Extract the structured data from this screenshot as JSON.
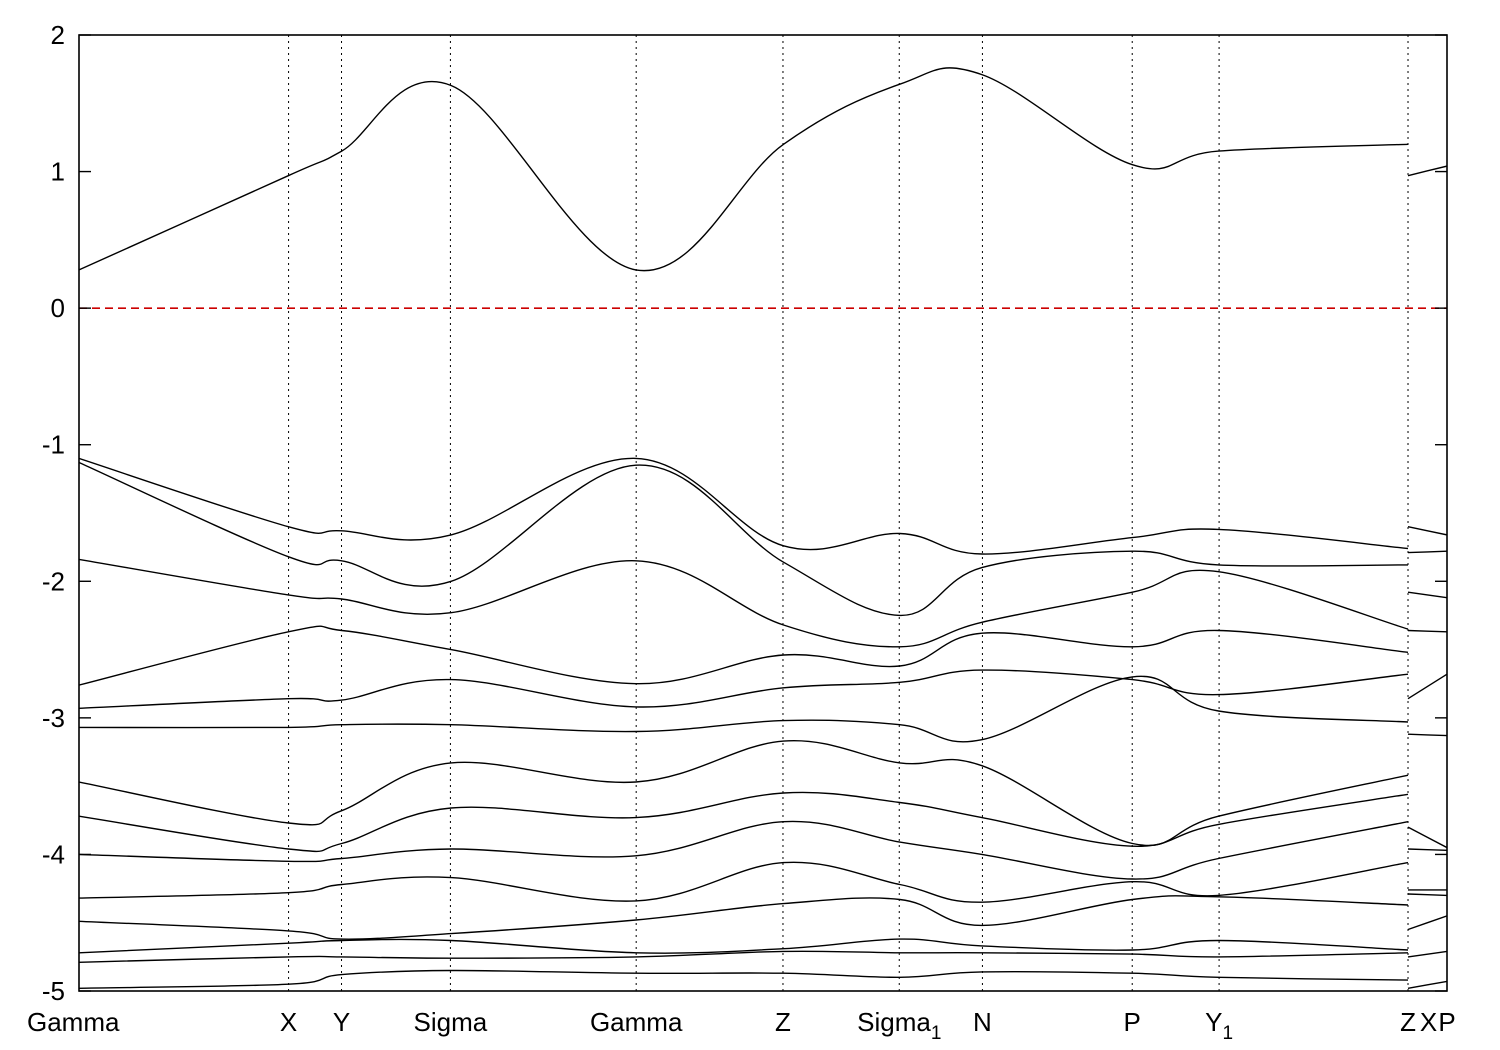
{
  "chart_data": {
    "type": "line",
    "title": "",
    "xlabel": "",
    "ylabel": "",
    "ylim": [
      -5,
      2
    ],
    "y_ticks": [
      {
        "value": 2,
        "label": "2"
      },
      {
        "value": 1,
        "label": "1"
      },
      {
        "value": 0,
        "label": "0"
      },
      {
        "value": -1,
        "label": "-1"
      },
      {
        "value": -2,
        "label": "-2"
      },
      {
        "value": -3,
        "label": "-3"
      },
      {
        "value": -4,
        "label": "-4"
      },
      {
        "value": -5,
        "label": "-5"
      }
    ],
    "xlim": [
      0,
      1.0
    ],
    "kpoints": [
      {
        "x": 0.0,
        "label": "Gamma",
        "sub": ""
      },
      {
        "x": 0.1532,
        "label": "X",
        "sub": ""
      },
      {
        "x": 0.1919,
        "label": "Y",
        "sub": ""
      },
      {
        "x": 0.2715,
        "label": "Sigma",
        "sub": ""
      },
      {
        "x": 0.4073,
        "label": "Gamma",
        "sub": ""
      },
      {
        "x": 0.5146,
        "label": "Z",
        "sub": ""
      },
      {
        "x": 0.5996,
        "label": "Sigma",
        "sub": "1"
      },
      {
        "x": 0.6604,
        "label": "N",
        "sub": ""
      },
      {
        "x": 0.7699,
        "label": "P",
        "sub": ""
      },
      {
        "x": 0.8334,
        "label": "Y",
        "sub": "1"
      },
      {
        "x": 0.9715,
        "label": "Z",
        "sub": ""
      },
      {
        "x": 1.0,
        "label": "X",
        "sub": "",
        "axis_label": "P"
      }
    ],
    "fermi_level": 0,
    "colors": {
      "bands": "#000000",
      "fermi": "#cc0000",
      "grid": "#000000"
    },
    "grid": "vertical dotted lines at k-points",
    "legend": "none",
    "bands": [
      {
        "x": [
          0,
          0.153,
          0.192,
          0.272,
          0.407,
          0.515,
          0.6,
          0.66,
          0.77,
          0.833,
          0.9715
        ],
        "y": [
          0.28,
          0.97,
          1.15,
          1.63,
          0.28,
          1.2,
          1.64,
          1.71,
          1.05,
          1.15,
          1.2
        ]
      },
      {
        "x": [
          0.9715,
          1.0
        ],
        "y": [
          0.97,
          1.04
        ]
      },
      {
        "x": [
          0,
          0.153,
          0.192,
          0.272,
          0.407,
          0.515,
          0.6,
          0.66,
          0.77,
          0.833,
          0.9715
        ],
        "y": [
          -1.1,
          -1.6,
          -1.63,
          -1.66,
          -1.1,
          -1.74,
          -1.65,
          -1.8,
          -1.68,
          -1.62,
          -1.76
        ]
      },
      {
        "x": [
          0.9715,
          1.0
        ],
        "y": [
          -1.6,
          -1.66
        ]
      },
      {
        "x": [
          0,
          0.153,
          0.192,
          0.272,
          0.407,
          0.515,
          0.6,
          0.66,
          0.77,
          0.833,
          0.9715
        ],
        "y": [
          -1.13,
          -1.82,
          -1.85,
          -2.0,
          -1.15,
          -1.86,
          -2.25,
          -1.9,
          -1.78,
          -1.88,
          -1.88
        ]
      },
      {
        "x": [
          0.9715,
          1.0
        ],
        "y": [
          -1.79,
          -1.78
        ]
      },
      {
        "x": [
          0,
          0.153,
          0.192,
          0.272,
          0.407,
          0.515,
          0.6,
          0.66,
          0.77,
          0.833,
          0.9715
        ],
        "y": [
          -1.84,
          -2.1,
          -2.13,
          -2.23,
          -1.85,
          -2.32,
          -2.48,
          -2.3,
          -2.08,
          -1.93,
          -2.35
        ]
      },
      {
        "x": [
          0.9715,
          1.0
        ],
        "y": [
          -2.08,
          -2.12
        ]
      },
      {
        "x": [
          0,
          0.153,
          0.192,
          0.272,
          0.407,
          0.515,
          0.6,
          0.66,
          0.77,
          0.833,
          0.9715
        ],
        "y": [
          -2.76,
          -2.37,
          -2.36,
          -2.5,
          -2.75,
          -2.54,
          -2.62,
          -2.38,
          -2.48,
          -2.36,
          -2.52
        ]
      },
      {
        "x": [
          0.9715,
          1.0
        ],
        "y": [
          -2.36,
          -2.37
        ]
      },
      {
        "x": [
          0,
          0.153,
          0.192,
          0.272,
          0.407,
          0.515,
          0.6,
          0.66,
          0.77,
          0.833,
          0.9715
        ],
        "y": [
          -2.93,
          -2.86,
          -2.87,
          -2.72,
          -2.92,
          -2.78,
          -2.74,
          -2.65,
          -2.72,
          -2.83,
          -2.68
        ]
      },
      {
        "x": [
          0.9715,
          1.0
        ],
        "y": [
          -2.86,
          -2.68
        ]
      },
      {
        "x": [
          0,
          0.153,
          0.192,
          0.272,
          0.407,
          0.515,
          0.6,
          0.66,
          0.77,
          0.833,
          0.9715
        ],
        "y": [
          -3.07,
          -3.07,
          -3.05,
          -3.05,
          -3.1,
          -3.02,
          -3.05,
          -3.16,
          -2.7,
          -2.95,
          -3.03
        ]
      },
      {
        "x": [
          0,
          0.153,
          0.192,
          0.272,
          0.407,
          0.515,
          0.6,
          0.66,
          0.77,
          0.833,
          0.9715
        ],
        "y": [
          -3.47,
          -3.77,
          -3.68,
          -3.33,
          -3.47,
          -3.17,
          -3.33,
          -3.35,
          -3.92,
          -3.72,
          -3.42
        ]
      },
      {
        "x": [
          0.9715,
          1.0
        ],
        "y": [
          -3.12,
          -3.13
        ]
      },
      {
        "x": [
          0,
          0.153,
          0.192,
          0.272,
          0.407,
          0.515,
          0.6,
          0.66,
          0.77,
          0.833,
          0.9715
        ],
        "y": [
          -3.72,
          -3.96,
          -3.92,
          -3.66,
          -3.73,
          -3.55,
          -3.62,
          -3.73,
          -3.94,
          -3.78,
          -3.56
        ]
      },
      {
        "x": [
          0.9715,
          1.0
        ],
        "y": [
          -3.8,
          -3.95
        ]
      },
      {
        "x": [
          0,
          0.153,
          0.192,
          0.272,
          0.407,
          0.515,
          0.6,
          0.66,
          0.77,
          0.833,
          0.9715
        ],
        "y": [
          -4.0,
          -4.05,
          -4.03,
          -3.96,
          -4.01,
          -3.76,
          -3.91,
          -4.0,
          -4.18,
          -4.03,
          -3.76
        ]
      },
      {
        "x": [
          0.9715,
          1.0
        ],
        "y": [
          -3.96,
          -3.97
        ]
      },
      {
        "x": [
          0,
          0.153,
          0.192,
          0.272,
          0.407,
          0.515,
          0.6,
          0.66,
          0.77,
          0.833,
          0.9715
        ],
        "y": [
          -4.32,
          -4.28,
          -4.22,
          -4.17,
          -4.34,
          -4.06,
          -4.22,
          -4.35,
          -4.2,
          -4.3,
          -4.06
        ]
      },
      {
        "x": [
          0.9715,
          1.0
        ],
        "y": [
          -4.26,
          -4.26
        ]
      },
      {
        "x": [
          0,
          0.153,
          0.192,
          0.272,
          0.407,
          0.515,
          0.6,
          0.66,
          0.77,
          0.833,
          0.9715
        ],
        "y": [
          -4.49,
          -4.56,
          -4.62,
          -4.58,
          -4.48,
          -4.36,
          -4.33,
          -4.52,
          -4.33,
          -4.31,
          -4.37
        ]
      },
      {
        "x": [
          0.9715,
          1.0
        ],
        "y": [
          -4.29,
          -4.3
        ]
      },
      {
        "x": [
          0,
          0.153,
          0.192,
          0.272,
          0.407,
          0.515,
          0.6,
          0.66,
          0.77,
          0.833,
          0.9715
        ],
        "y": [
          -4.72,
          -4.65,
          -4.63,
          -4.63,
          -4.72,
          -4.69,
          -4.62,
          -4.67,
          -4.7,
          -4.63,
          -4.7
        ]
      },
      {
        "x": [
          0.9715,
          1.0
        ],
        "y": [
          -4.55,
          -4.45
        ]
      },
      {
        "x": [
          0,
          0.153,
          0.192,
          0.272,
          0.407,
          0.515,
          0.6,
          0.66,
          0.77,
          0.833,
          0.9715
        ],
        "y": [
          -4.79,
          -4.75,
          -4.75,
          -4.76,
          -4.75,
          -4.71,
          -4.72,
          -4.72,
          -4.73,
          -4.75,
          -4.72
        ]
      },
      {
        "x": [
          0.9715,
          1.0
        ],
        "y": [
          -4.75,
          -4.71
        ]
      },
      {
        "x": [
          0,
          0.153,
          0.192,
          0.272,
          0.407,
          0.515,
          0.6,
          0.66,
          0.77,
          0.833,
          0.9715
        ],
        "y": [
          -4.98,
          -4.95,
          -4.88,
          -4.85,
          -4.87,
          -4.87,
          -4.9,
          -4.86,
          -4.87,
          -4.9,
          -4.92
        ]
      },
      {
        "x": [
          0.9715,
          1.0
        ],
        "y": [
          -4.98,
          -4.93
        ]
      }
    ]
  }
}
